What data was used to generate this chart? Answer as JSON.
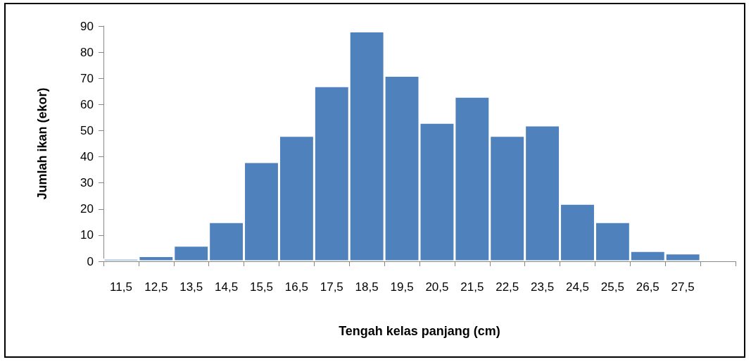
{
  "chart_data": {
    "type": "bar",
    "xlabel": "Tengah kelas panjang (cm)",
    "ylabel": "Jumlah ikan (ekor)",
    "categories": [
      "11,5",
      "12,5",
      "13,5",
      "14,5",
      "15,5",
      "16,5",
      "17,5",
      "18,5",
      "19,5",
      "20,5",
      "21,5",
      "22,5",
      "23,5",
      "24,5",
      "25,5",
      "26,5",
      "27,5",
      null
    ],
    "values": [
      1,
      2,
      6,
      15,
      38,
      48,
      67,
      88,
      71,
      53,
      63,
      48,
      52,
      22,
      15,
      4,
      3,
      null
    ],
    "color": "#4f81bd",
    "ylim": [
      0,
      90
    ],
    "yticks": [
      0,
      10,
      20,
      30,
      40,
      50,
      60,
      70,
      80,
      90
    ]
  }
}
